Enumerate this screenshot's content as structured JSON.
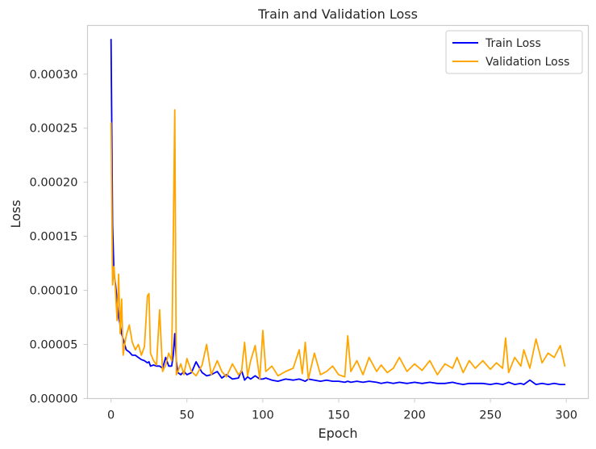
{
  "chart_data": {
    "type": "line",
    "title": "Train and Validation Loss",
    "xlabel": "Epoch",
    "ylabel": "Loss",
    "xlim": [
      -15.5,
      314.5
    ],
    "ylim": [
      0,
      0.000345
    ],
    "x_ticks": [
      0,
      50,
      100,
      150,
      200,
      250,
      300
    ],
    "y_ticks": [
      0,
      5e-05,
      0.0001,
      0.00015,
      0.0002,
      0.00025,
      0.0003
    ],
    "y_tick_labels": [
      "0.00000",
      "0.00005",
      "0.00010",
      "0.00015",
      "0.00020",
      "0.00025",
      "0.00030"
    ],
    "grid": false,
    "legend_position": "top-right",
    "x": [
      0,
      1,
      2,
      3,
      4,
      5,
      6,
      7,
      8,
      9,
      10,
      12,
      14,
      16,
      18,
      20,
      22,
      24,
      25,
      26,
      28,
      30,
      32,
      34,
      36,
      38,
      40,
      41,
      42,
      43,
      44,
      46,
      48,
      50,
      53,
      56,
      60,
      63,
      66,
      70,
      73,
      76,
      80,
      84,
      86,
      88,
      90,
      92,
      95,
      98,
      100,
      102,
      106,
      110,
      115,
      120,
      124,
      126,
      128,
      130,
      134,
      138,
      142,
      146,
      150,
      154,
      156,
      158,
      162,
      166,
      170,
      175,
      178,
      182,
      186,
      190,
      195,
      200,
      205,
      210,
      215,
      220,
      225,
      228,
      232,
      236,
      240,
      245,
      250,
      254,
      258,
      260,
      262,
      266,
      270,
      272,
      276,
      280,
      284,
      288,
      292,
      296,
      299
    ],
    "series": [
      {
        "name": "Train Loss",
        "color": "#0000ff",
        "values": [
          0.000332,
          0.00016,
          0.000115,
          0.000105,
          9e-05,
          7.5e-05,
          6.8e-05,
          6e-05,
          5.5e-05,
          5e-05,
          4.5e-05,
          4.3e-05,
          4e-05,
          4e-05,
          3.8e-05,
          3.6e-05,
          3.5e-05,
          3.3e-05,
          3.4e-05,
          3e-05,
          3.1e-05,
          3e-05,
          3e-05,
          2.8e-05,
          3.8e-05,
          3e-05,
          3e-05,
          4e-05,
          6e-05,
          3.5e-05,
          2.4e-05,
          2.2e-05,
          2.5e-05,
          2.2e-05,
          2.4e-05,
          3.4e-05,
          2.4e-05,
          2.1e-05,
          2.2e-05,
          2.5e-05,
          1.9e-05,
          2.2e-05,
          1.8e-05,
          1.9e-05,
          2.6e-05,
          1.7e-05,
          2e-05,
          1.8e-05,
          2.1e-05,
          1.8e-05,
          1.8e-05,
          1.9e-05,
          1.7e-05,
          1.6e-05,
          1.8e-05,
          1.7e-05,
          1.8e-05,
          1.7e-05,
          1.6e-05,
          1.8e-05,
          1.7e-05,
          1.6e-05,
          1.7e-05,
          1.6e-05,
          1.6e-05,
          1.5e-05,
          1.6e-05,
          1.5e-05,
          1.6e-05,
          1.5e-05,
          1.6e-05,
          1.5e-05,
          1.4e-05,
          1.5e-05,
          1.4e-05,
          1.5e-05,
          1.4e-05,
          1.5e-05,
          1.4e-05,
          1.5e-05,
          1.4e-05,
          1.4e-05,
          1.5e-05,
          1.4e-05,
          1.3e-05,
          1.4e-05,
          1.4e-05,
          1.4e-05,
          1.3e-05,
          1.4e-05,
          1.3e-05,
          1.4e-05,
          1.5e-05,
          1.3e-05,
          1.4e-05,
          1.3e-05,
          1.7e-05,
          1.3e-05,
          1.4e-05,
          1.3e-05,
          1.4e-05,
          1.3e-05,
          1.3e-05
        ]
      },
      {
        "name": "Validation Loss",
        "color": "#ffa500",
        "values": [
          0.000255,
          0.000105,
          0.000122,
          9.8e-05,
          7.2e-05,
          0.000115,
          6e-05,
          9.2e-05,
          4e-05,
          5e-05,
          5.8e-05,
          6.8e-05,
          5.2e-05,
          4.5e-05,
          5e-05,
          4e-05,
          4.8e-05,
          9.5e-05,
          9.7e-05,
          4.2e-05,
          3.5e-05,
          3.1e-05,
          8.2e-05,
          2.5e-05,
          3.1e-05,
          4.2e-05,
          3.5e-05,
          0.000145,
          0.000267,
          2.2e-05,
          2.5e-05,
          3.2e-05,
          2.2e-05,
          3.7e-05,
          2.5e-05,
          2.1e-05,
          3.1e-05,
          5e-05,
          2.2e-05,
          3.5e-05,
          2.5e-05,
          2e-05,
          3.2e-05,
          2.2e-05,
          2.5e-05,
          5.2e-05,
          2.1e-05,
          3.5e-05,
          4.9e-05,
          1.8e-05,
          6.3e-05,
          2.5e-05,
          3e-05,
          2.1e-05,
          2.5e-05,
          2.8e-05,
          4.5e-05,
          2.3e-05,
          5.2e-05,
          1.8e-05,
          4.2e-05,
          2.2e-05,
          2.5e-05,
          3e-05,
          2.2e-05,
          2e-05,
          5.8e-05,
          2.5e-05,
          3.5e-05,
          2.2e-05,
          3.8e-05,
          2.5e-05,
          3.1e-05,
          2.4e-05,
          2.8e-05,
          3.8e-05,
          2.5e-05,
          3.2e-05,
          2.6e-05,
          3.5e-05,
          2.2e-05,
          3.2e-05,
          2.8e-05,
          3.8e-05,
          2.4e-05,
          3.5e-05,
          2.8e-05,
          3.5e-05,
          2.7e-05,
          3.3e-05,
          2.8e-05,
          5.6e-05,
          2.4e-05,
          3.8e-05,
          3e-05,
          4.5e-05,
          2.8e-05,
          5.5e-05,
          3.3e-05,
          4.2e-05,
          3.8e-05,
          4.9e-05,
          3e-05
        ]
      }
    ]
  }
}
